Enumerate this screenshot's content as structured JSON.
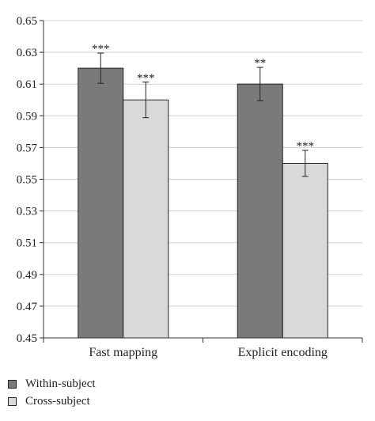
{
  "chart_data": {
    "type": "bar",
    "categories": [
      "Fast mapping",
      "Explicit encoding"
    ],
    "series": [
      {
        "name": "Within-subject",
        "color": "#7a7a7a",
        "values": [
          0.62,
          0.61
        ],
        "error": [
          0.0095,
          0.0105
        ],
        "significance": [
          "***",
          "**"
        ]
      },
      {
        "name": "Cross-subject",
        "color": "#d9d9d9",
        "values": [
          0.6,
          0.56
        ],
        "error": [
          0.0112,
          0.0082
        ],
        "significance": [
          "***",
          "***"
        ]
      }
    ],
    "ylim": [
      0.45,
      0.65
    ],
    "yticks": [
      "0.45",
      "0.47",
      "0.49",
      "0.51",
      "0.53",
      "0.55",
      "0.57",
      "0.59",
      "0.61",
      "0.63",
      "0.65"
    ],
    "grid": true,
    "legend_position": "bottom-left",
    "title": "",
    "xlabel": "",
    "ylabel": ""
  }
}
